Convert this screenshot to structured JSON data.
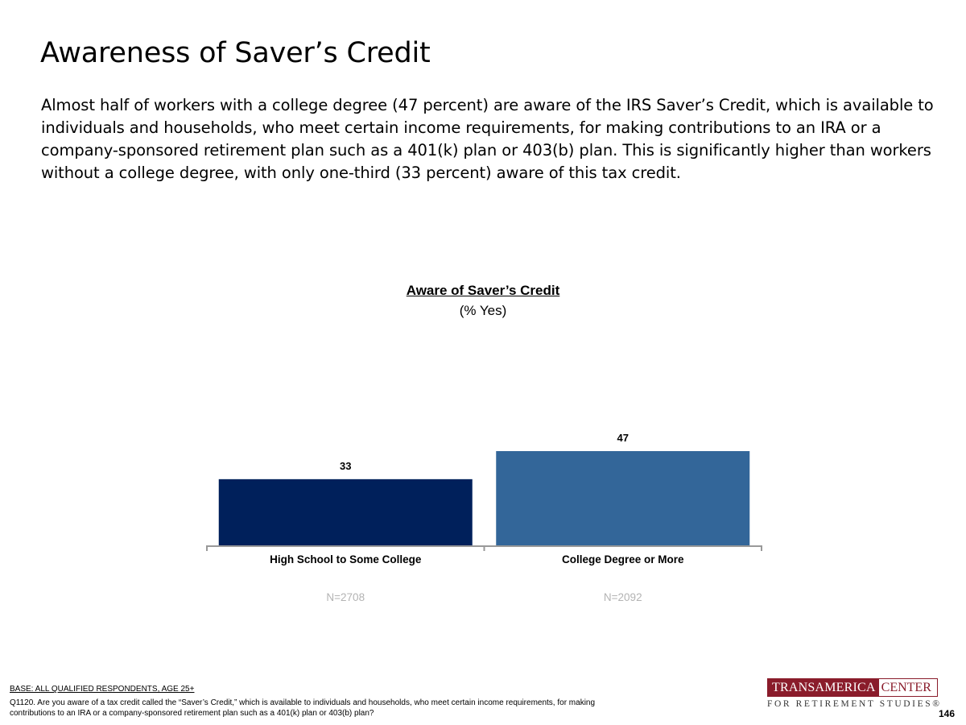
{
  "slide": {
    "title": "Awareness of Saver’s Credit",
    "subtitle": "Almost half of workers with a college degree (47 percent) are aware of the IRS Saver’s Credit, which is available to individuals and households, who meet certain income requirements, for making contributions to an IRA or a company-sponsored retirement plan such as a 401(k) plan or 403(b) plan. This is significantly higher than workers without a college degree, with only one-third (33 percent) aware of this tax credit.",
    "page_number": "146"
  },
  "chart_data": {
    "type": "bar",
    "title": "Aware of Saver’s Credit",
    "subtitle": "(% Yes)",
    "categories": [
      "High School to Some College",
      "College Degree or More"
    ],
    "values": [
      33,
      47
    ],
    "value_labels": [
      "33",
      "47"
    ],
    "sample_sizes": [
      "N=2708",
      "N=2092"
    ],
    "bar_colors": [
      "#00205b",
      "#336699"
    ],
    "ylim": [
      0,
      100
    ],
    "xlabel": "",
    "ylabel": "",
    "grid": false
  },
  "footer": {
    "base": "BASE: ALL QUALIFIED RESPONDENTS, AGE 25+",
    "question": "Q1120. Are you aware of a tax credit called the “Saver’s Credit,” which is available to individuals and households, who meet certain income requirements, for making contributions to an IRA or a company-sponsored retirement plan such as a 401(k) plan or 403(b) plan?"
  },
  "logo": {
    "left_text": "TRANSAMERICA",
    "right_text": "CENTER",
    "bottom_text": "FOR RETIREMENT STUDIES®"
  }
}
